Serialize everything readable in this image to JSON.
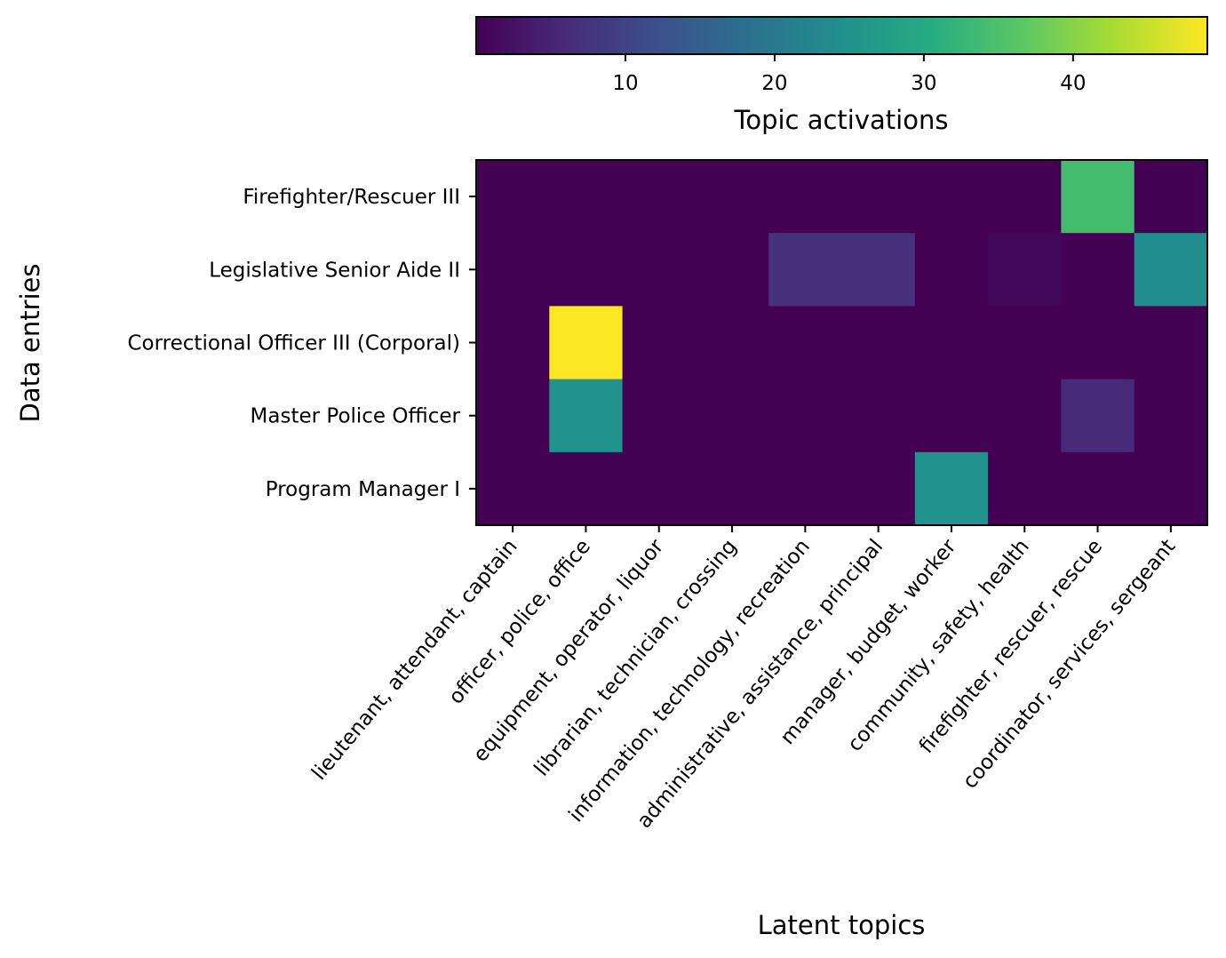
{
  "chart_data": {
    "type": "heatmap",
    "title": "",
    "xlabel": "Latent topics",
    "ylabel": "Data entries",
    "rows": [
      "Firefighter/Rescuer III",
      "Legislative Senior Aide II",
      "Correctional Officer III (Corporal)",
      "Master Police Officer",
      "Program Manager I"
    ],
    "columns": [
      "lieutenant, attendant, captain",
      "officer, police, office",
      "equipment, operator, liquor",
      "librarian, technician, crossing",
      "information, technology, recreation",
      "administrative, assistance, principal",
      "manager, budget, worker",
      "community, safety, health",
      "firefighter, rescuer, rescue",
      "coordinator, services, sergeant"
    ],
    "values": [
      [
        0,
        0,
        0,
        0,
        0,
        0,
        0,
        0,
        34,
        0
      ],
      [
        0,
        0,
        0,
        0,
        7,
        7,
        0,
        1,
        0,
        24
      ],
      [
        0,
        49,
        0,
        0,
        0,
        0,
        0,
        0,
        0,
        0
      ],
      [
        0,
        25,
        0,
        0,
        0,
        0,
        0,
        0,
        6,
        0
      ],
      [
        0,
        0,
        0,
        0,
        0,
        0,
        25,
        0,
        0,
        0
      ]
    ],
    "colorbar": {
      "label": "Topic activations",
      "range": [
        0,
        49
      ],
      "ticks": [
        10,
        20,
        30,
        40
      ],
      "colormap": "viridis",
      "placement": "top"
    }
  }
}
